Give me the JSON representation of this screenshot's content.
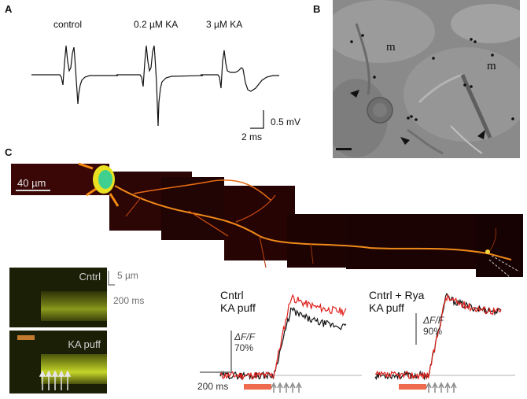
{
  "panels": {
    "A": {
      "letter": "A",
      "traces": [
        {
          "label": "control"
        },
        {
          "label": "0.2 µM KA"
        },
        {
          "label": "3 µM KA"
        }
      ],
      "scale": {
        "voltage": "0.5 mV",
        "time": "2 ms"
      }
    },
    "B": {
      "letter": "B",
      "marks": [
        "m",
        "m"
      ]
    },
    "C": {
      "letter": "C",
      "mosaic_scale": "40 µm",
      "linescans": {
        "top_label": "Cntrl",
        "bottom_label": "KA puff",
        "scale_space": "5 µm",
        "scale_time": "200 ms"
      },
      "trace_panels": [
        {
          "title_line1": "Cntrl",
          "title_line2": "KA puff"
        },
        {
          "title_line1": "Cntrl + Rya",
          "title_line2": "KA puff"
        }
      ],
      "scale_left": {
        "dff": "ΔF/F",
        "pct": "70%",
        "time": "200 ms"
      },
      "scale_right": {
        "dff": "ΔF/F",
        "pct": "90%"
      }
    }
  },
  "colors": {
    "red_trace": "#e0201b",
    "black_trace": "#111111",
    "puff_bar": "#ef6b4f",
    "arrow_gray": "#8c8c8c",
    "linescan_yellow": "#c7d62a",
    "puff_marker": "#c27a2e"
  }
}
